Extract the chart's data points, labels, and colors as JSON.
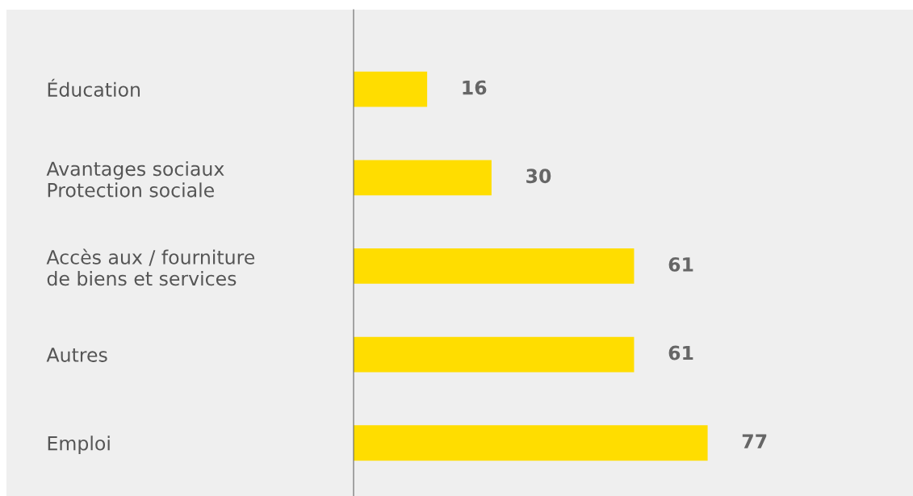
{
  "chart_data": {
    "type": "bar",
    "orientation": "horizontal",
    "categories": [
      "Éducation",
      "Avantages sociaux\nProtection sociale",
      "Accès aux / fourniture\nde biens et services",
      "Autres",
      "Emploi"
    ],
    "values": [
      16,
      30,
      61,
      61,
      77
    ],
    "color": "#ffdd00",
    "data_labels": true,
    "tick_labels": "y",
    "grid": false,
    "legend": false
  }
}
